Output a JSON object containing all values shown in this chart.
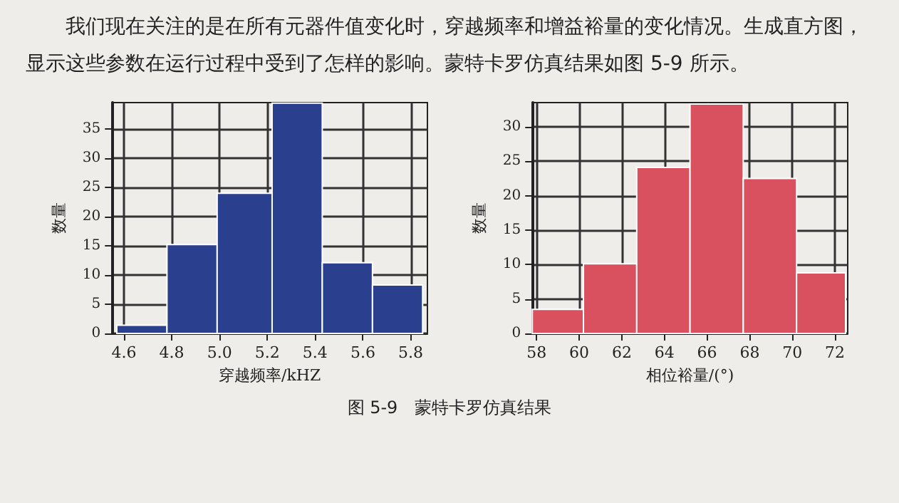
{
  "chart_data": [
    {
      "type": "histogram",
      "ylabel": "数量",
      "xlabel": "穿越频率/kHZ",
      "annotations": [
        "我们现在关注的是在所有元器件值变化时，穿越频率和增益裕量的变化情况。生成直方图，显示这些参数在运行过程中受到了怎样的影响。蒙特卡罗仿真结果如图 5-9 所示。"
      ],
      "bins": [
        4.57,
        4.78,
        4.99,
        5.22,
        5.43,
        5.64,
        5.85
      ],
      "values": [
        1.4,
        15.2,
        24,
        39.4,
        12.1,
        8.3
      ],
      "color": "#2b3f8f",
      "xlim": [
        4.55,
        5.87
      ],
      "xticks": [
        4.6,
        4.8,
        {
          "value": 5,
          "label": "5.0"
        },
        5.2,
        5.4,
        5.6,
        5.8
      ],
      "ylim": [
        0,
        39.5
      ],
      "yticks": [
        0,
        5,
        10,
        15,
        20,
        25,
        30,
        35
      ],
      "grid": true
    },
    {
      "type": "histogram",
      "ylabel": "数量",
      "xlabel": "相位裕量/(°)",
      "annotations": [
        "图 5-9　蒙特卡罗仿真结果"
      ],
      "bins": [
        57.8,
        60.2,
        62.7,
        65.2,
        67.7,
        70.2,
        72.5
      ],
      "values": [
        3.5,
        10.1,
        24.1,
        33.3,
        22.5,
        8.8
      ],
      "color": "#d9505f",
      "xlim": [
        57.8,
        72.6
      ],
      "xticks": [
        58,
        60,
        62,
        64,
        66,
        68,
        70,
        72
      ],
      "ylim": [
        0,
        33.5
      ],
      "yticks": [
        0,
        5,
        10,
        15,
        20,
        25,
        30
      ],
      "grid": true
    }
  ]
}
